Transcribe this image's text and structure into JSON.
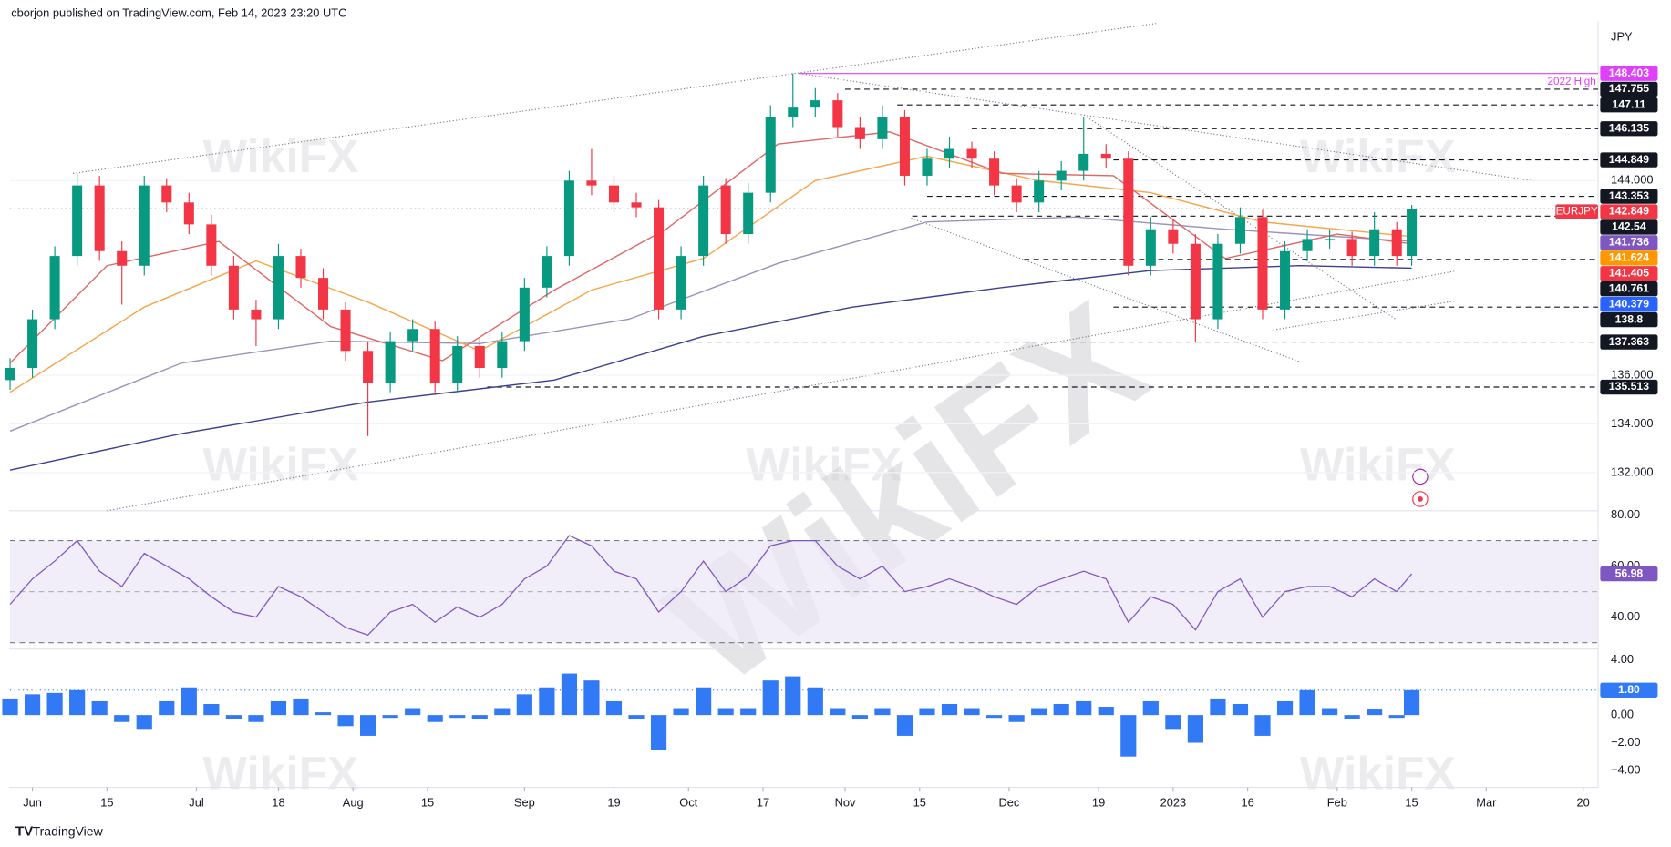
{
  "chart_data": {
    "type": "candlestick",
    "header": "cborjon published on TradingView.com, Feb 14, 2023 23:20 UTC",
    "footer_brand": "TradingView",
    "watermark": "WikiFX",
    "symbol": "EURJPY",
    "currency": "JPY",
    "annotation": "2022 High",
    "up_color": "#089981",
    "down_color": "#f23645",
    "x": [
      -3,
      0,
      3,
      6,
      9,
      12,
      15,
      18,
      21,
      24,
      27,
      30,
      33,
      36,
      39,
      42,
      45,
      48,
      51,
      54,
      57,
      60,
      63,
      66,
      69,
      72,
      75,
      78,
      81,
      84,
      87,
      90,
      93,
      96,
      99,
      102,
      105,
      108,
      111,
      114,
      117,
      120,
      123,
      126,
      129,
      132,
      135,
      138,
      141,
      144,
      147,
      150,
      153,
      156,
      159,
      162,
      165,
      168,
      171,
      174,
      177,
      180,
      183,
      185
    ],
    "open": [
      135.8,
      136.3,
      138.3,
      140.9,
      143.8,
      141.1,
      140.5,
      143.8,
      143.1,
      142.2,
      140.5,
      138.7,
      138.3,
      140.9,
      140.0,
      138.7,
      137.0,
      135.7,
      137.4,
      137.9,
      135.7,
      137.2,
      136.3,
      137.4,
      139.6,
      140.9,
      144.0,
      143.8,
      143.1,
      142.9,
      138.7,
      140.9,
      143.8,
      141.8,
      143.5,
      146.6,
      147.0,
      147.3,
      146.2,
      145.7,
      146.6,
      144.2,
      144.9,
      145.3,
      144.9,
      143.8,
      143.1,
      144.0,
      144.4,
      145.1,
      144.9,
      140.5,
      142.0,
      141.4,
      138.3,
      141.4,
      142.5,
      138.7,
      141.1,
      141.6,
      141.6,
      140.9,
      142.0,
      140.9
    ],
    "high": [
      136.7,
      138.7,
      141.3,
      144.3,
      144.2,
      141.5,
      144.2,
      144.1,
      143.5,
      142.6,
      140.9,
      139.1,
      141.4,
      141.2,
      140.4,
      139.0,
      137.4,
      137.8,
      138.3,
      138.2,
      137.6,
      137.5,
      137.8,
      140.0,
      141.3,
      144.4,
      145.3,
      144.2,
      143.5,
      143.2,
      141.3,
      144.2,
      144.1,
      143.9,
      147.1,
      148.403,
      147.8,
      147.6,
      146.6,
      147.1,
      146.9,
      145.3,
      145.8,
      145.6,
      145.2,
      144.1,
      144.4,
      144.8,
      146.6,
      145.5,
      145.2,
      142.5,
      142.4,
      141.8,
      141.8,
      142.9,
      142.8,
      141.5,
      142.0,
      142.0,
      141.9,
      142.7,
      142.3,
      143.0
    ],
    "low": [
      135.4,
      135.9,
      137.9,
      140.5,
      140.7,
      138.9,
      140.1,
      142.7,
      141.8,
      140.1,
      138.3,
      137.2,
      137.9,
      139.6,
      138.3,
      136.6,
      133.5,
      135.3,
      137.0,
      135.3,
      135.3,
      135.9,
      135.9,
      137.0,
      139.2,
      140.5,
      143.4,
      142.7,
      142.5,
      138.3,
      138.3,
      140.5,
      141.4,
      141.4,
      143.1,
      146.2,
      146.6,
      145.8,
      145.3,
      145.3,
      143.8,
      143.8,
      144.5,
      144.5,
      143.4,
      142.7,
      142.7,
      143.6,
      144.0,
      144.5,
      140.1,
      140.1,
      141.0,
      137.363,
      137.9,
      141.0,
      138.3,
      138.3,
      140.7,
      141.2,
      140.5,
      140.5,
      140.5,
      140.5
    ],
    "close": [
      136.3,
      138.3,
      140.9,
      143.8,
      141.1,
      140.5,
      143.8,
      143.1,
      142.2,
      140.5,
      138.7,
      138.3,
      140.9,
      140.0,
      138.7,
      137.0,
      135.7,
      137.4,
      137.9,
      135.7,
      137.2,
      136.3,
      137.4,
      139.6,
      140.9,
      144.0,
      143.8,
      143.1,
      142.9,
      138.7,
      140.9,
      143.8,
      141.8,
      143.5,
      146.6,
      147.0,
      147.3,
      146.2,
      145.7,
      146.6,
      144.2,
      144.9,
      145.3,
      144.9,
      143.8,
      143.1,
      144.0,
      144.4,
      145.1,
      144.9,
      140.5,
      142.0,
      141.4,
      138.3,
      141.4,
      142.5,
      138.7,
      141.1,
      141.6,
      141.6,
      140.9,
      142.0,
      140.9,
      142.849
    ],
    "xlim": [
      -3,
      210
    ],
    "xticks": [
      {
        "value": 0,
        "label": "Jun"
      },
      {
        "value": 10,
        "label": "15"
      },
      {
        "value": 22,
        "label": "Jul"
      },
      {
        "value": 33,
        "label": "18"
      },
      {
        "value": 43,
        "label": "Aug"
      },
      {
        "value": 53,
        "label": "15"
      },
      {
        "value": 66,
        "label": "Sep"
      },
      {
        "value": 78,
        "label": "19"
      },
      {
        "value": 88,
        "label": "Oct"
      },
      {
        "value": 98,
        "label": "17"
      },
      {
        "value": 109,
        "label": "Nov"
      },
      {
        "value": 119,
        "label": "15"
      },
      {
        "value": 131,
        "label": "Dec"
      },
      {
        "value": 143,
        "label": "19"
      },
      {
        "value": 153,
        "label": "2023"
      },
      {
        "value": 163,
        "label": "16"
      },
      {
        "value": 175,
        "label": "Feb"
      },
      {
        "value": 185,
        "label": "15"
      },
      {
        "value": 195,
        "label": "Mar"
      },
      {
        "value": 208,
        "label": "20"
      }
    ],
    "ylim": [
      130.43,
      150.46
    ],
    "yticks": [
      {
        "value": 144,
        "label": "144.000"
      },
      {
        "value": 136,
        "label": "136.000"
      },
      {
        "value": 134,
        "label": "134.000"
      },
      {
        "value": 132,
        "label": "132.000"
      }
    ],
    "moving_averages": [
      {
        "color": "#3d3f8f",
        "x": [
          -3,
          20,
          45,
          70,
          90,
          110,
          130,
          150,
          170,
          185
        ],
        "values": [
          132.1,
          133.6,
          134.9,
          135.8,
          137.6,
          138.8,
          139.6,
          140.3,
          140.5,
          140.4
        ]
      },
      {
        "color": "#9a93b8",
        "x": [
          -3,
          20,
          40,
          60,
          80,
          100,
          120,
          140,
          160,
          185
        ],
        "values": [
          133.7,
          136.5,
          137.4,
          137.3,
          138.3,
          140.6,
          142.3,
          142.5,
          142.0,
          141.5
        ]
      },
      {
        "color": "#f5a54a",
        "x": [
          -3,
          15,
          30,
          45,
          60,
          75,
          90,
          105,
          120,
          135,
          150,
          165,
          185
        ],
        "values": [
          135.3,
          138.8,
          140.7,
          139.0,
          137.0,
          139.5,
          140.8,
          144.0,
          145.0,
          144.0,
          143.5,
          142.3,
          141.7
        ]
      },
      {
        "color": "#e06666",
        "x": [
          -3,
          10,
          25,
          40,
          55,
          70,
          85,
          100,
          115,
          130,
          145,
          160,
          175,
          185
        ],
        "values": [
          136.5,
          140.5,
          141.5,
          138.0,
          136.6,
          139.5,
          142.0,
          145.5,
          146.0,
          144.3,
          144.2,
          140.8,
          141.8,
          141.4
        ]
      }
    ],
    "levels": [
      {
        "value": 148.403,
        "bg": "#e040fb",
        "fg": "#ffffff",
        "x": 103,
        "line": "solid",
        "line_color": "#e040fb"
      },
      {
        "value": 147.755,
        "bg": "#131722",
        "fg": "#ffffff",
        "x": 109,
        "line": "dashed",
        "line_color": "#131722"
      },
      {
        "value": 147.11,
        "bg": "#131722",
        "fg": "#ffffff",
        "x": 116,
        "line": "dashed",
        "line_color": "#131722"
      },
      {
        "value": 146.135,
        "bg": "#131722",
        "fg": "#ffffff",
        "x": 126,
        "line": "dashed",
        "line_color": "#131722"
      },
      {
        "value": 144.849,
        "bg": "#131722",
        "fg": "#ffffff",
        "x": 145,
        "line": "dashed",
        "line_color": "#131722"
      },
      {
        "value": 143.353,
        "bg": "#131722",
        "fg": "#ffffff",
        "x": 120,
        "line": "dashed",
        "line_color": "#131722"
      },
      {
        "value": 142.849,
        "bg": "#f23645",
        "fg": "#ffffff",
        "x": -3,
        "line": "dotted",
        "line_color": "#9598a1"
      },
      {
        "value": 142.54,
        "bg": "#131722",
        "fg": "#ffffff",
        "x": 118,
        "line": "dashed",
        "line_color": "#131722"
      },
      {
        "value": 141.736,
        "bg": "#7e57c2",
        "fg": "#ffffff",
        "x": null,
        "line": null,
        "line_color": null
      },
      {
        "value": 141.624,
        "bg": "#ff9800",
        "fg": "#ffffff",
        "x": null,
        "line": null,
        "line_color": null
      },
      {
        "value": 141.405,
        "bg": "#f23645",
        "fg": "#ffffff",
        "x": null,
        "line": null,
        "line_color": null
      },
      {
        "value": 140.761,
        "bg": "#131722",
        "fg": "#ffffff",
        "x": 133,
        "line": "dashed",
        "line_color": "#131722"
      },
      {
        "value": 140.379,
        "bg": "#2962ff",
        "fg": "#ffffff",
        "x": null,
        "line": null,
        "line_color": null
      },
      {
        "value": 138.8,
        "bg": "#131722",
        "fg": "#ffffff",
        "x": 145,
        "line": "dashed",
        "line_color": "#131722"
      },
      {
        "value": 137.363,
        "bg": "#131722",
        "fg": "#ffffff",
        "x": 84,
        "line": "dashed",
        "line_color": "#131722"
      },
      {
        "value": 135.513,
        "bg": "#131722",
        "fg": "#ffffff",
        "x": 61,
        "line": "dashed",
        "line_color": "#131722"
      }
    ],
    "rsi": {
      "color": "#7e57c2",
      "band_color": "#ede7f6",
      "band": [
        30,
        70
      ],
      "midline": 50,
      "ylim": [
        27.5,
        81.7
      ],
      "yticks": [
        {
          "value": 80,
          "label": "80.00"
        },
        {
          "value": 60,
          "label": "60.00"
        },
        {
          "value": 40,
          "label": "40.00"
        }
      ],
      "values": [
        45,
        55,
        62,
        70,
        58,
        52,
        65,
        60,
        55,
        48,
        42,
        40,
        52,
        48,
        42,
        36,
        33,
        42,
        45,
        38,
        44,
        40,
        45,
        55,
        60,
        72,
        68,
        58,
        55,
        42,
        50,
        62,
        50,
        56,
        68,
        70,
        70,
        60,
        55,
        60,
        50,
        52,
        55,
        52,
        48,
        45,
        52,
        55,
        58,
        55,
        38,
        48,
        45,
        35,
        50,
        55,
        40,
        50,
        52,
        52,
        48,
        55,
        50,
        56.98
      ]
    },
    "macd": {
      "color": "#3179f5",
      "ylim": [
        -5.23,
        4.77
      ],
      "last_label": "1.80",
      "yticks": [
        {
          "value": 4,
          "label": "4.00"
        },
        {
          "value": 0,
          "label": "0.00"
        },
        {
          "value": -2,
          "label": "−2.00"
        },
        {
          "value": -4,
          "label": "−4.00"
        }
      ],
      "values": [
        1.2,
        1.5,
        1.6,
        1.8,
        1.0,
        -0.5,
        -1.0,
        1.0,
        2.0,
        0.8,
        -0.3,
        -0.5,
        1.0,
        1.2,
        0.2,
        -0.8,
        -1.5,
        -0.2,
        0.5,
        -0.5,
        -0.2,
        -0.3,
        0.5,
        1.5,
        2.0,
        3.0,
        2.5,
        1.0,
        -0.3,
        -2.5,
        0.5,
        2.0,
        0.5,
        0.5,
        2.5,
        2.8,
        2.0,
        0.5,
        -0.3,
        0.5,
        -1.5,
        0.5,
        0.8,
        0.5,
        -0.2,
        -0.5,
        0.5,
        0.8,
        1.0,
        0.6,
        -3.0,
        1.0,
        -1.0,
        -2.0,
        1.2,
        0.8,
        -1.5,
        1.0,
        1.8,
        0.5,
        -0.3,
        0.4,
        -0.2,
        1.8
      ]
    }
  }
}
